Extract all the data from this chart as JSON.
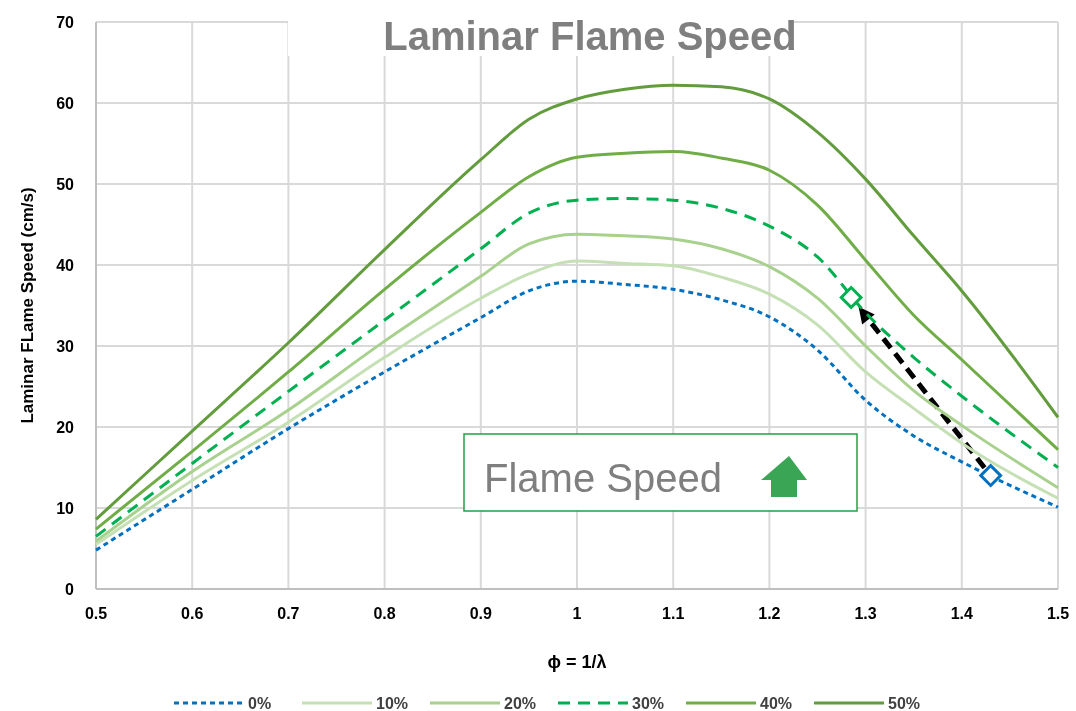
{
  "chart_data": {
    "type": "line",
    "title": "Laminar Flame Speed",
    "xlabel": "ϕ = 1/λ",
    "ylabel": "Laminar FLame Speed (cm/s)",
    "x": [
      0.5,
      0.6,
      0.7,
      0.8,
      0.9,
      0.95,
      1.0,
      1.05,
      1.1,
      1.15,
      1.2,
      1.25,
      1.3,
      1.35,
      1.4,
      1.5
    ],
    "xlim": [
      0.5,
      1.5
    ],
    "xticks": [
      0.5,
      0.6,
      0.7,
      0.8,
      0.9,
      1,
      1.1,
      1.2,
      1.3,
      1.4,
      1.5
    ],
    "ylim": [
      0,
      70
    ],
    "yticks": [
      0,
      10,
      20,
      30,
      40,
      50,
      60,
      70
    ],
    "grid": true,
    "legend": "bottom",
    "annotations": [
      "Flame Speed"
    ],
    "series": [
      {
        "name": "0%",
        "color": "#0070c0",
        "line_style": "dotted",
        "values": [
          4.8,
          12.3,
          19.8,
          26.8,
          33.5,
          36.8,
          38,
          37.6,
          37,
          35.7,
          33.6,
          29.5,
          23.3,
          18.9,
          15.7,
          10.1
        ]
      },
      {
        "name": "10%",
        "color": "#c5e0b4",
        "values": [
          5.5,
          13.4,
          20.6,
          28.6,
          35.9,
          38.9,
          40.5,
          40.2,
          39.9,
          38.5,
          36.4,
          32.6,
          26.8,
          22.3,
          18,
          11.2
        ]
      },
      {
        "name": "20%",
        "color": "#a9d18e",
        "values": [
          5.9,
          14.5,
          22.1,
          30.6,
          38.6,
          42.6,
          43.8,
          43.6,
          43.2,
          42,
          39.8,
          35.9,
          30,
          24.5,
          20.2,
          12.5
        ]
      },
      {
        "name": "30%",
        "color": "#00b050",
        "line_style": "dashed",
        "values": [
          6.5,
          15.5,
          24.4,
          33.2,
          42,
          46.4,
          48,
          48.2,
          48,
          47,
          44.8,
          41,
          34.1,
          28.6,
          23.8,
          15
        ]
      },
      {
        "name": "40%",
        "color": "#70ad47",
        "values": [
          7.4,
          17,
          26.8,
          37,
          46.5,
          50.9,
          53.3,
          53.8,
          54,
          53.2,
          51.7,
          47.4,
          40.6,
          33.8,
          28.3,
          17.2
        ]
      },
      {
        "name": "50%",
        "color": "#629c3c",
        "values": [
          8.6,
          19.5,
          30.4,
          41.9,
          53,
          58,
          60.5,
          61.7,
          62.2,
          62,
          60.5,
          56.4,
          50.6,
          43.6,
          36.8,
          21.2
        ]
      },
      {
        "type": "scatter",
        "marker": "diamond",
        "color": "#0070c0",
        "x": [
          1.43
        ],
        "values": [
          14
        ]
      },
      {
        "type": "scatter",
        "marker": "diamond",
        "color": "#00b050",
        "x": [
          1.285
        ],
        "values": [
          36
        ]
      }
    ]
  }
}
